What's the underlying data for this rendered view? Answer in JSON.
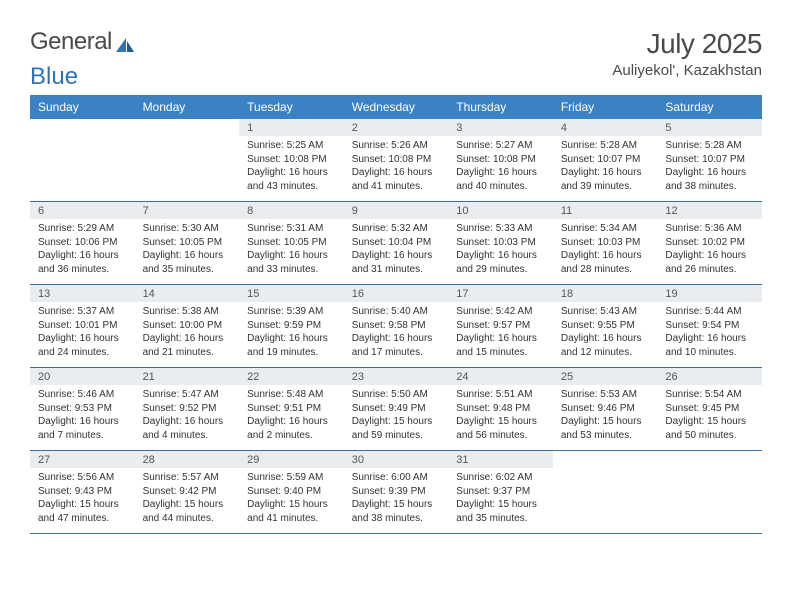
{
  "logo": {
    "text1": "General",
    "text2": "Blue"
  },
  "title": "July 2025",
  "location": "Auliyekol', Kazakhstan",
  "colors": {
    "header_bg": "#3b82c4",
    "header_text": "#ffffff",
    "daynum_bg": "#e9edf0",
    "rule": "#3b6fa0",
    "logo_blue": "#2f74b5"
  },
  "day_names": [
    "Sunday",
    "Monday",
    "Tuesday",
    "Wednesday",
    "Thursday",
    "Friday",
    "Saturday"
  ],
  "weeks": [
    [
      {
        "n": "",
        "lines": [
          "",
          "",
          "",
          ""
        ]
      },
      {
        "n": "",
        "lines": [
          "",
          "",
          "",
          ""
        ]
      },
      {
        "n": "1",
        "lines": [
          "Sunrise: 5:25 AM",
          "Sunset: 10:08 PM",
          "Daylight: 16 hours",
          "and 43 minutes."
        ]
      },
      {
        "n": "2",
        "lines": [
          "Sunrise: 5:26 AM",
          "Sunset: 10:08 PM",
          "Daylight: 16 hours",
          "and 41 minutes."
        ]
      },
      {
        "n": "3",
        "lines": [
          "Sunrise: 5:27 AM",
          "Sunset: 10:08 PM",
          "Daylight: 16 hours",
          "and 40 minutes."
        ]
      },
      {
        "n": "4",
        "lines": [
          "Sunrise: 5:28 AM",
          "Sunset: 10:07 PM",
          "Daylight: 16 hours",
          "and 39 minutes."
        ]
      },
      {
        "n": "5",
        "lines": [
          "Sunrise: 5:28 AM",
          "Sunset: 10:07 PM",
          "Daylight: 16 hours",
          "and 38 minutes."
        ]
      }
    ],
    [
      {
        "n": "6",
        "lines": [
          "Sunrise: 5:29 AM",
          "Sunset: 10:06 PM",
          "Daylight: 16 hours",
          "and 36 minutes."
        ]
      },
      {
        "n": "7",
        "lines": [
          "Sunrise: 5:30 AM",
          "Sunset: 10:05 PM",
          "Daylight: 16 hours",
          "and 35 minutes."
        ]
      },
      {
        "n": "8",
        "lines": [
          "Sunrise: 5:31 AM",
          "Sunset: 10:05 PM",
          "Daylight: 16 hours",
          "and 33 minutes."
        ]
      },
      {
        "n": "9",
        "lines": [
          "Sunrise: 5:32 AM",
          "Sunset: 10:04 PM",
          "Daylight: 16 hours",
          "and 31 minutes."
        ]
      },
      {
        "n": "10",
        "lines": [
          "Sunrise: 5:33 AM",
          "Sunset: 10:03 PM",
          "Daylight: 16 hours",
          "and 29 minutes."
        ]
      },
      {
        "n": "11",
        "lines": [
          "Sunrise: 5:34 AM",
          "Sunset: 10:03 PM",
          "Daylight: 16 hours",
          "and 28 minutes."
        ]
      },
      {
        "n": "12",
        "lines": [
          "Sunrise: 5:36 AM",
          "Sunset: 10:02 PM",
          "Daylight: 16 hours",
          "and 26 minutes."
        ]
      }
    ],
    [
      {
        "n": "13",
        "lines": [
          "Sunrise: 5:37 AM",
          "Sunset: 10:01 PM",
          "Daylight: 16 hours",
          "and 24 minutes."
        ]
      },
      {
        "n": "14",
        "lines": [
          "Sunrise: 5:38 AM",
          "Sunset: 10:00 PM",
          "Daylight: 16 hours",
          "and 21 minutes."
        ]
      },
      {
        "n": "15",
        "lines": [
          "Sunrise: 5:39 AM",
          "Sunset: 9:59 PM",
          "Daylight: 16 hours",
          "and 19 minutes."
        ]
      },
      {
        "n": "16",
        "lines": [
          "Sunrise: 5:40 AM",
          "Sunset: 9:58 PM",
          "Daylight: 16 hours",
          "and 17 minutes."
        ]
      },
      {
        "n": "17",
        "lines": [
          "Sunrise: 5:42 AM",
          "Sunset: 9:57 PM",
          "Daylight: 16 hours",
          "and 15 minutes."
        ]
      },
      {
        "n": "18",
        "lines": [
          "Sunrise: 5:43 AM",
          "Sunset: 9:55 PM",
          "Daylight: 16 hours",
          "and 12 minutes."
        ]
      },
      {
        "n": "19",
        "lines": [
          "Sunrise: 5:44 AM",
          "Sunset: 9:54 PM",
          "Daylight: 16 hours",
          "and 10 minutes."
        ]
      }
    ],
    [
      {
        "n": "20",
        "lines": [
          "Sunrise: 5:46 AM",
          "Sunset: 9:53 PM",
          "Daylight: 16 hours",
          "and 7 minutes."
        ]
      },
      {
        "n": "21",
        "lines": [
          "Sunrise: 5:47 AM",
          "Sunset: 9:52 PM",
          "Daylight: 16 hours",
          "and 4 minutes."
        ]
      },
      {
        "n": "22",
        "lines": [
          "Sunrise: 5:48 AM",
          "Sunset: 9:51 PM",
          "Daylight: 16 hours",
          "and 2 minutes."
        ]
      },
      {
        "n": "23",
        "lines": [
          "Sunrise: 5:50 AM",
          "Sunset: 9:49 PM",
          "Daylight: 15 hours",
          "and 59 minutes."
        ]
      },
      {
        "n": "24",
        "lines": [
          "Sunrise: 5:51 AM",
          "Sunset: 9:48 PM",
          "Daylight: 15 hours",
          "and 56 minutes."
        ]
      },
      {
        "n": "25",
        "lines": [
          "Sunrise: 5:53 AM",
          "Sunset: 9:46 PM",
          "Daylight: 15 hours",
          "and 53 minutes."
        ]
      },
      {
        "n": "26",
        "lines": [
          "Sunrise: 5:54 AM",
          "Sunset: 9:45 PM",
          "Daylight: 15 hours",
          "and 50 minutes."
        ]
      }
    ],
    [
      {
        "n": "27",
        "lines": [
          "Sunrise: 5:56 AM",
          "Sunset: 9:43 PM",
          "Daylight: 15 hours",
          "and 47 minutes."
        ]
      },
      {
        "n": "28",
        "lines": [
          "Sunrise: 5:57 AM",
          "Sunset: 9:42 PM",
          "Daylight: 15 hours",
          "and 44 minutes."
        ]
      },
      {
        "n": "29",
        "lines": [
          "Sunrise: 5:59 AM",
          "Sunset: 9:40 PM",
          "Daylight: 15 hours",
          "and 41 minutes."
        ]
      },
      {
        "n": "30",
        "lines": [
          "Sunrise: 6:00 AM",
          "Sunset: 9:39 PM",
          "Daylight: 15 hours",
          "and 38 minutes."
        ]
      },
      {
        "n": "31",
        "lines": [
          "Sunrise: 6:02 AM",
          "Sunset: 9:37 PM",
          "Daylight: 15 hours",
          "and 35 minutes."
        ]
      },
      {
        "n": "",
        "lines": [
          "",
          "",
          "",
          ""
        ]
      },
      {
        "n": "",
        "lines": [
          "",
          "",
          "",
          ""
        ]
      }
    ]
  ]
}
